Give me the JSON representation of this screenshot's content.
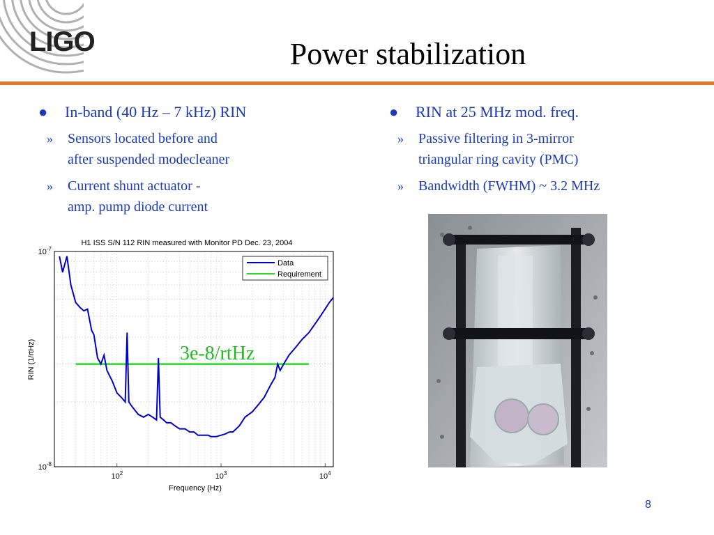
{
  "slide": {
    "title": "Power stabilization",
    "logo_text": "LIGO",
    "page_number": "8"
  },
  "left": {
    "bullet": "In-band (40 Hz – 7 kHz) RIN",
    "subs": [
      {
        "line1": "Sensors located before and",
        "line2": "after suspended modecleaner"
      },
      {
        "line1": "Current shunt actuator -",
        "line2": "amp.  pump diode current"
      }
    ]
  },
  "right": {
    "bullet": "RIN at 25 MHz mod. freq.",
    "subs": [
      {
        "line1": "Passive filtering in 3-mirror",
        "line2": "triangular ring cavity (PMC)"
      },
      {
        "line1": "Bandwidth (FWHM) ~ 3.2 MHz",
        "line2": ""
      }
    ]
  },
  "colors": {
    "accent_rule": "#e8782a",
    "text_blue": "#1a3ab8",
    "data_line": "#0000cc",
    "requirement_line": "#22dd22"
  },
  "chart_data": {
    "type": "line",
    "title": "H1 ISS S/N 112 RIN measured with Monitor PD Dec. 23, 2004",
    "xlabel": "Frequency (Hz)",
    "ylabel": "RIN (1/rtHz)",
    "x_scale": "log",
    "y_scale": "log",
    "xlim": [
      25,
      12000
    ],
    "ylim": [
      1e-08,
      1e-07
    ],
    "x_ticks": [
      {
        "label": "10",
        "exp": "2",
        "value": 100
      },
      {
        "label": "10",
        "exp": "3",
        "value": 1000
      },
      {
        "label": "10",
        "exp": "4",
        "value": 10000
      }
    ],
    "y_ticks": [
      {
        "label": "10",
        "exp": "-7",
        "value": 1e-07
      },
      {
        "label": "10",
        "exp": "-8",
        "value": 1e-08
      }
    ],
    "grid": true,
    "legend_position": "top-right",
    "annotation": "3e-8/rtHz",
    "series": [
      {
        "name": "Data",
        "x": [
          28,
          30,
          33,
          36,
          40,
          44,
          48,
          52,
          57,
          60,
          65,
          70,
          75,
          80,
          90,
          100,
          110,
          120,
          125,
          130,
          140,
          160,
          180,
          200,
          220,
          240,
          250,
          260,
          280,
          300,
          330,
          360,
          400,
          450,
          500,
          550,
          600,
          650,
          700,
          750,
          800,
          900,
          1000,
          1100,
          1200,
          1300,
          1400,
          1500,
          1700,
          2000,
          2300,
          2600,
          3000,
          3300,
          3500,
          3700,
          4000,
          4500,
          5000,
          5500,
          6000,
          7000,
          8000,
          9000,
          10000,
          11000,
          12000
        ],
        "y": [
          9.5e-08,
          8e-08,
          9.5e-08,
          7e-08,
          5.8e-08,
          5.5e-08,
          5.3e-08,
          5.4e-08,
          4.3e-08,
          4.1e-08,
          3.2e-08,
          3e-08,
          3.3e-08,
          2.8e-08,
          2.5e-08,
          2.2e-08,
          2.1e-08,
          2e-08,
          4.2e-08,
          2e-08,
          1.9e-08,
          1.75e-08,
          1.7e-08,
          1.75e-08,
          1.7e-08,
          1.65e-08,
          3.2e-08,
          1.7e-08,
          1.65e-08,
          1.6e-08,
          1.6e-08,
          1.55e-08,
          1.5e-08,
          1.5e-08,
          1.45e-08,
          1.45e-08,
          1.4e-08,
          1.4e-08,
          1.4e-08,
          1.4e-08,
          1.38e-08,
          1.38e-08,
          1.4e-08,
          1.42e-08,
          1.45e-08,
          1.45e-08,
          1.5e-08,
          1.55e-08,
          1.7e-08,
          1.8e-08,
          1.95e-08,
          2.1e-08,
          2.4e-08,
          2.6e-08,
          3e-08,
          2.8e-08,
          3e-08,
          3.3e-08,
          3.5e-08,
          3.7e-08,
          3.9e-08,
          4.2e-08,
          4.6e-08,
          5e-08,
          5.4e-08,
          5.8e-08,
          6.1e-08
        ]
      },
      {
        "name": "Requirement",
        "x": [
          40,
          7000
        ],
        "y": [
          3e-08,
          3e-08
        ]
      }
    ]
  }
}
